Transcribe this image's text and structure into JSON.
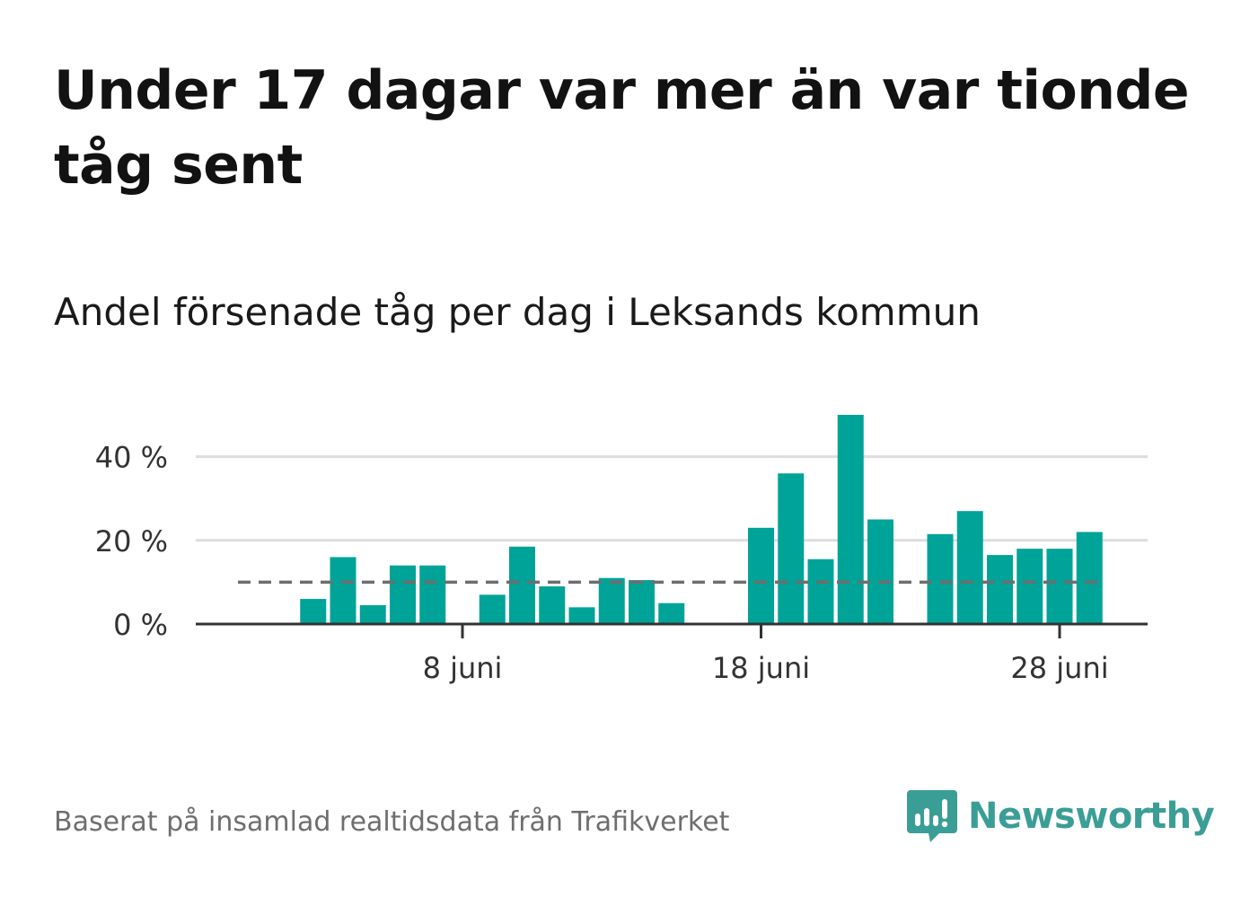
{
  "header": {
    "title": "Under 17 dagar var mer än var tionde tåg sent",
    "subtitle": "Andel försenade tåg per dag i Leksands kommun"
  },
  "footer": {
    "source": "Baserat på insamlad realtidsdata från Trafikverket",
    "brand": "Newsworthy",
    "brand_icon": "bar-chart-speech-bubble-icon"
  },
  "colors": {
    "bar": "#00a398",
    "reference_line": "#6e6e6e",
    "grid": "#dddddd",
    "axis": "#333333",
    "brand": "#3a9e96"
  },
  "chart_data": {
    "type": "bar",
    "title": "Andel försenade tåg per dag i Leksands kommun",
    "xlabel": "",
    "ylabel": "",
    "x_unit": "juni",
    "x": [
      1,
      2,
      3,
      4,
      5,
      6,
      7,
      8,
      9,
      10,
      11,
      12,
      13,
      14,
      15,
      16,
      17,
      18,
      19,
      20,
      21,
      22,
      23,
      24,
      25,
      26,
      27,
      28,
      29,
      30
    ],
    "values": [
      null,
      null,
      6,
      16,
      4.5,
      14,
      14,
      null,
      7,
      18.5,
      9,
      4,
      11,
      10.5,
      5,
      null,
      null,
      23,
      36,
      15.5,
      50,
      25,
      null,
      21.5,
      27,
      16.5,
      18,
      18,
      22,
      null
    ],
    "ylim": [
      0,
      50
    ],
    "yticks": [
      0,
      20,
      40
    ],
    "ytick_labels": [
      "0 %",
      "20 %",
      "40 %"
    ],
    "xticks": [
      8,
      18,
      28
    ],
    "xtick_labels": [
      "8 juni",
      "18 juni",
      "28 juni"
    ],
    "reference_line": {
      "value": 10,
      "style": "dashed"
    },
    "grid": true,
    "legend": "none"
  }
}
